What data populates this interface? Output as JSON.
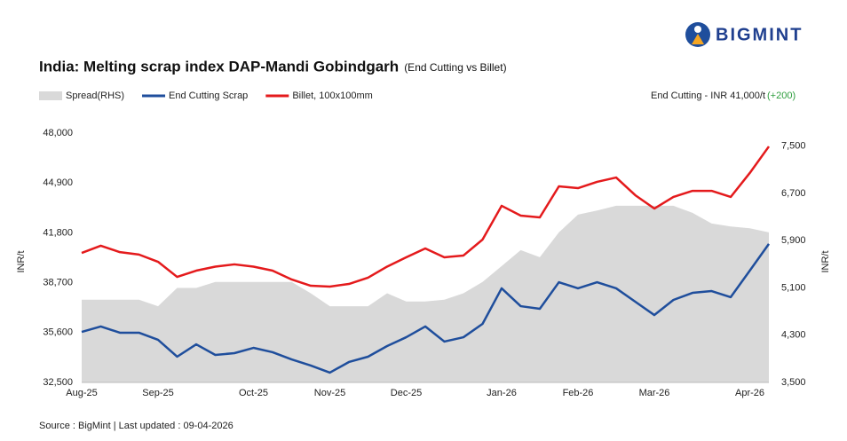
{
  "logo": "BIGMINT",
  "chart_data": {
    "type": "line",
    "title": "India: Melting scrap index DAP-Mandi Gobindgarh",
    "subtitle": "(End Cutting vs Billet)",
    "annotation": "End Cutting - INR 41,000/t",
    "annotation_change": "(+200)",
    "ylabel": "INR/t",
    "y2label": "INR/t",
    "source": "Source : BigMint | Last updated : 09-04-2026",
    "categories": [
      "Aug-25",
      null,
      null,
      null,
      "Sep-25",
      null,
      null,
      null,
      null,
      "Oct-25",
      null,
      null,
      null,
      "Nov-25",
      null,
      null,
      null,
      "Dec-25",
      null,
      null,
      null,
      null,
      "Jan-26",
      null,
      null,
      null,
      "Feb-26",
      null,
      null,
      null,
      "Mar-26",
      null,
      null,
      null,
      null,
      "Apr-26",
      null
    ],
    "ylim": [
      32500,
      48000
    ],
    "yticks": [
      {
        "value": 32500,
        "label": "32,500"
      },
      {
        "value": 35600,
        "label": "35,600"
      },
      {
        "value": 38700,
        "label": "38,700"
      },
      {
        "value": 41800,
        "label": "41,800"
      },
      {
        "value": 44900,
        "label": "44,900"
      },
      {
        "value": 48000,
        "label": "48,000"
      }
    ],
    "y2lim": [
      3500,
      7720
    ],
    "y2ticks": [
      {
        "value": 3500,
        "label": "3,500"
      },
      {
        "value": 4300,
        "label": "4,300"
      },
      {
        "value": 5100,
        "label": "5,100"
      },
      {
        "value": 5900,
        "label": "5,900"
      },
      {
        "value": 6700,
        "label": "6,700"
      },
      {
        "value": 7500,
        "label": "7,500"
      }
    ],
    "series": [
      {
        "name": "Spread(RHS)",
        "type": "area",
        "axis": "y2",
        "color": "#d9d9d9",
        "values": [
          4900,
          4900,
          4900,
          4900,
          4790,
          5100,
          5100,
          5200,
          5200,
          5200,
          5200,
          5200,
          5010,
          4790,
          4790,
          4790,
          5010,
          4870,
          4870,
          4900,
          5010,
          5200,
          5470,
          5740,
          5620,
          6040,
          6340,
          6410,
          6490,
          6490,
          6490,
          6490,
          6370,
          6190,
          6140,
          6110,
          6040
        ]
      },
      {
        "name": "End Cutting Scrap",
        "type": "line",
        "color": "#1f4e9c",
        "values": [
          35640,
          35980,
          35590,
          35590,
          35150,
          34100,
          34870,
          34210,
          34320,
          34650,
          34380,
          33930,
          33550,
          33110,
          33770,
          34100,
          34760,
          35310,
          35980,
          35040,
          35310,
          36140,
          38350,
          37240,
          37080,
          38730,
          38350,
          38730,
          38350,
          37520,
          36690,
          37630,
          38070,
          38180,
          37800,
          39450,
          41110
        ]
      },
      {
        "name": "Billet, 100x100mm",
        "type": "line",
        "color": "#e41a1c",
        "values": [
          40550,
          41000,
          40600,
          40450,
          40000,
          39060,
          39450,
          39700,
          39840,
          39700,
          39450,
          38900,
          38510,
          38460,
          38620,
          39010,
          39700,
          40280,
          40830,
          40280,
          40390,
          41380,
          43480,
          42870,
          42760,
          44690,
          44580,
          44970,
          45240,
          44140,
          43310,
          44030,
          44410,
          44410,
          44030,
          45520,
          47170
        ]
      }
    ]
  }
}
